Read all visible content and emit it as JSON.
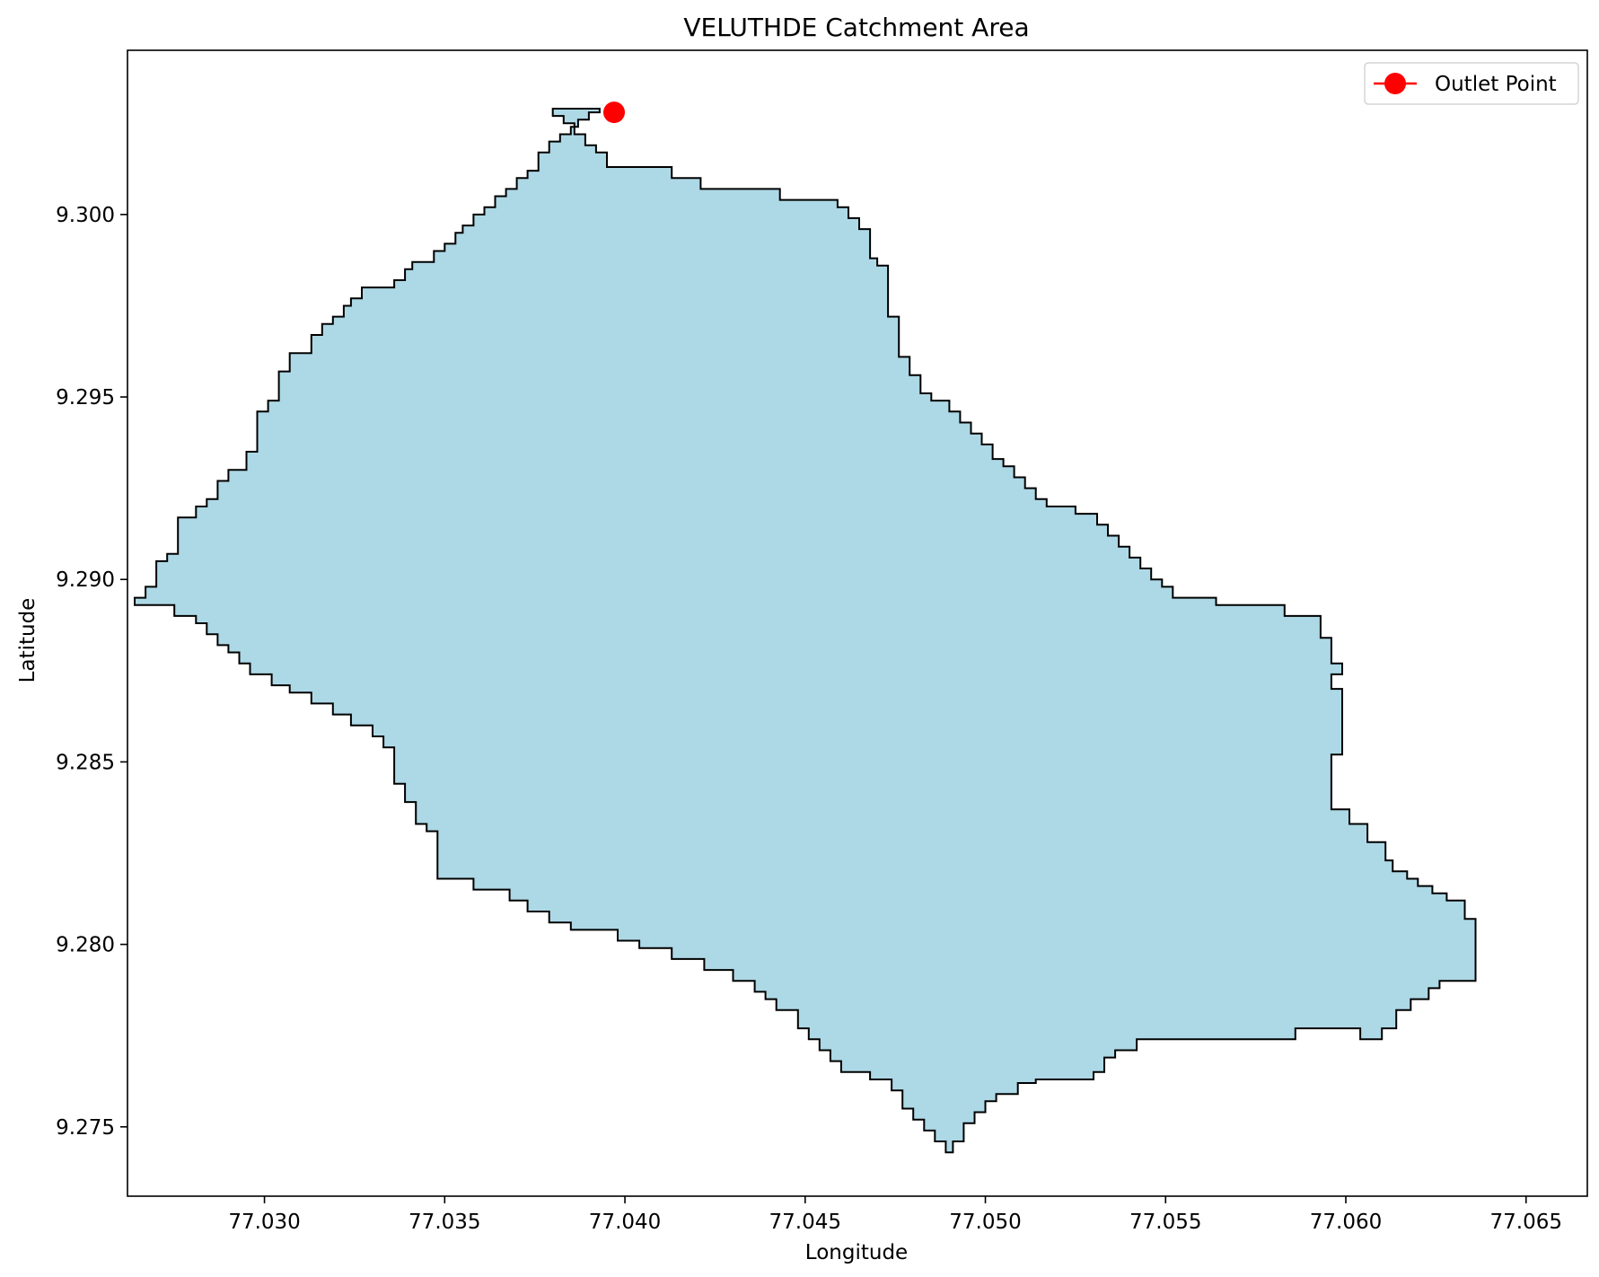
{
  "chart_data": {
    "type": "area",
    "title": "VELUTHDE Catchment Area",
    "xlabel": "Longitude",
    "ylabel": "Latitude",
    "xlim": [
      77.0262,
      77.0667
    ],
    "ylim": [
      9.2731,
      9.3045
    ],
    "xticks": [
      77.03,
      77.035,
      77.04,
      77.045,
      77.05,
      77.055,
      77.06,
      77.065
    ],
    "xtick_labels": [
      "77.030",
      "77.035",
      "77.040",
      "77.045",
      "77.050",
      "77.055",
      "77.060",
      "77.065"
    ],
    "yticks": [
      9.275,
      9.28,
      9.285,
      9.29,
      9.295,
      9.3
    ],
    "ytick_labels": [
      "9.275",
      "9.280",
      "9.285",
      "9.290",
      "9.295",
      "9.300"
    ],
    "grid": false,
    "legend": {
      "position": "top-right",
      "entries": [
        {
          "label": "Outlet Point",
          "color": "#ff0000",
          "marker": "circle"
        }
      ]
    },
    "catchment_fill": "#add8e6",
    "catchment_edge": "#000000",
    "outlet_point": {
      "name": "Outlet Point",
      "x": 77.0397,
      "y": 9.3028,
      "color": "#ff0000"
    },
    "boundary": [
      [
        77.0393,
        9.3029
      ],
      [
        77.0393,
        9.3028
      ],
      [
        77.039,
        9.3028
      ],
      [
        77.039,
        9.3026
      ],
      [
        77.0387,
        9.3026
      ],
      [
        77.0387,
        9.3024
      ],
      [
        77.0385,
        9.3024
      ],
      [
        77.0385,
        9.3022
      ],
      [
        77.0382,
        9.3022
      ],
      [
        77.0382,
        9.302
      ],
      [
        77.0379,
        9.302
      ],
      [
        77.0379,
        9.3017
      ],
      [
        77.0376,
        9.3017
      ],
      [
        77.0376,
        9.3012
      ],
      [
        77.0373,
        9.3012
      ],
      [
        77.0373,
        9.301
      ],
      [
        77.037,
        9.301
      ],
      [
        77.037,
        9.3007
      ],
      [
        77.0367,
        9.3007
      ],
      [
        77.0367,
        9.3005
      ],
      [
        77.0364,
        9.3005
      ],
      [
        77.0364,
        9.3002
      ],
      [
        77.0361,
        9.3002
      ],
      [
        77.0361,
        9.3
      ],
      [
        77.0358,
        9.3
      ],
      [
        77.0358,
        9.2997
      ],
      [
        77.0355,
        9.2997
      ],
      [
        77.0355,
        9.2995
      ],
      [
        77.0353,
        9.2995
      ],
      [
        77.0353,
        9.2992
      ],
      [
        77.035,
        9.2992
      ],
      [
        77.035,
        9.299
      ],
      [
        77.0347,
        9.299
      ],
      [
        77.0347,
        9.2987
      ],
      [
        77.0341,
        9.2987
      ],
      [
        77.0341,
        9.2985
      ],
      [
        77.0339,
        9.2985
      ],
      [
        77.0339,
        9.2982
      ],
      [
        77.0336,
        9.2982
      ],
      [
        77.0336,
        9.298
      ],
      [
        77.0327,
        9.298
      ],
      [
        77.0327,
        9.2977
      ],
      [
        77.0324,
        9.2977
      ],
      [
        77.0324,
        9.2975
      ],
      [
        77.0322,
        9.2975
      ],
      [
        77.0322,
        9.2972
      ],
      [
        77.0319,
        9.2972
      ],
      [
        77.0319,
        9.297
      ],
      [
        77.0316,
        9.297
      ],
      [
        77.0316,
        9.2967
      ],
      [
        77.0313,
        9.2967
      ],
      [
        77.0313,
        9.2962
      ],
      [
        77.0307,
        9.2962
      ],
      [
        77.0307,
        9.2957
      ],
      [
        77.0304,
        9.2957
      ],
      [
        77.0304,
        9.2949
      ],
      [
        77.0301,
        9.2949
      ],
      [
        77.0301,
        9.2946
      ],
      [
        77.0298,
        9.2946
      ],
      [
        77.0298,
        9.2935
      ],
      [
        77.0295,
        9.2935
      ],
      [
        77.0295,
        9.293
      ],
      [
        77.029,
        9.293
      ],
      [
        77.029,
        9.2927
      ],
      [
        77.0287,
        9.2927
      ],
      [
        77.0287,
        9.2922
      ],
      [
        77.0284,
        9.2922
      ],
      [
        77.0284,
        9.292
      ],
      [
        77.0281,
        9.292
      ],
      [
        77.0281,
        9.2917
      ],
      [
        77.0276,
        9.2917
      ],
      [
        77.0276,
        9.2907
      ],
      [
        77.0273,
        9.2907
      ],
      [
        77.0273,
        9.2905
      ],
      [
        77.027,
        9.2905
      ],
      [
        77.027,
        9.2898
      ],
      [
        77.0267,
        9.2898
      ],
      [
        77.0267,
        9.2895
      ],
      [
        77.0264,
        9.2895
      ],
      [
        77.0264,
        9.2893
      ],
      [
        77.0275,
        9.2893
      ],
      [
        77.0275,
        9.289
      ],
      [
        77.0281,
        9.289
      ],
      [
        77.0281,
        9.2888
      ],
      [
        77.0284,
        9.2888
      ],
      [
        77.0284,
        9.2885
      ],
      [
        77.0287,
        9.2885
      ],
      [
        77.0287,
        9.2882
      ],
      [
        77.029,
        9.2882
      ],
      [
        77.029,
        9.288
      ],
      [
        77.0293,
        9.288
      ],
      [
        77.0293,
        9.2877
      ],
      [
        77.0296,
        9.2877
      ],
      [
        77.0296,
        9.2874
      ],
      [
        77.0302,
        9.2874
      ],
      [
        77.0302,
        9.2871
      ],
      [
        77.0307,
        9.2871
      ],
      [
        77.0307,
        9.2869
      ],
      [
        77.0313,
        9.2869
      ],
      [
        77.0313,
        9.2866
      ],
      [
        77.0319,
        9.2866
      ],
      [
        77.0319,
        9.2863
      ],
      [
        77.0324,
        9.2863
      ],
      [
        77.0324,
        9.286
      ],
      [
        77.033,
        9.286
      ],
      [
        77.033,
        9.2857
      ],
      [
        77.0333,
        9.2857
      ],
      [
        77.0333,
        9.2854
      ],
      [
        77.0336,
        9.2854
      ],
      [
        77.0336,
        9.2844
      ],
      [
        77.0339,
        9.2844
      ],
      [
        77.0339,
        9.2839
      ],
      [
        77.0342,
        9.2839
      ],
      [
        77.0342,
        9.2833
      ],
      [
        77.0345,
        9.2833
      ],
      [
        77.0345,
        9.2831
      ],
      [
        77.0348,
        9.2831
      ],
      [
        77.0348,
        9.2818
      ],
      [
        77.0358,
        9.2818
      ],
      [
        77.0358,
        9.2815
      ],
      [
        77.0368,
        9.2815
      ],
      [
        77.0368,
        9.2812
      ],
      [
        77.0373,
        9.2812
      ],
      [
        77.0373,
        9.2809
      ],
      [
        77.0379,
        9.2809
      ],
      [
        77.0379,
        9.2806
      ],
      [
        77.0385,
        9.2806
      ],
      [
        77.0385,
        9.2804
      ],
      [
        77.0398,
        9.2804
      ],
      [
        77.0398,
        9.2801
      ],
      [
        77.0404,
        9.2801
      ],
      [
        77.0404,
        9.2799
      ],
      [
        77.0413,
        9.2799
      ],
      [
        77.0413,
        9.2796
      ],
      [
        77.0422,
        9.2796
      ],
      [
        77.0422,
        9.2793
      ],
      [
        77.043,
        9.2793
      ],
      [
        77.043,
        9.279
      ],
      [
        77.0436,
        9.279
      ],
      [
        77.0436,
        9.2787
      ],
      [
        77.0439,
        9.2787
      ],
      [
        77.0439,
        9.2785
      ],
      [
        77.0442,
        9.2785
      ],
      [
        77.0442,
        9.2782
      ],
      [
        77.0448,
        9.2782
      ],
      [
        77.0448,
        9.2777
      ],
      [
        77.0451,
        9.2777
      ],
      [
        77.0451,
        9.2774
      ],
      [
        77.0454,
        9.2774
      ],
      [
        77.0454,
        9.2771
      ],
      [
        77.0457,
        9.2771
      ],
      [
        77.0457,
        9.2768
      ],
      [
        77.046,
        9.2768
      ],
      [
        77.046,
        9.2765
      ],
      [
        77.0468,
        9.2765
      ],
      [
        77.0468,
        9.2763
      ],
      [
        77.0474,
        9.2763
      ],
      [
        77.0474,
        9.276
      ],
      [
        77.0477,
        9.276
      ],
      [
        77.0477,
        9.2755
      ],
      [
        77.048,
        9.2755
      ],
      [
        77.048,
        9.2752
      ],
      [
        77.0483,
        9.2752
      ],
      [
        77.0483,
        9.2749
      ],
      [
        77.0486,
        9.2749
      ],
      [
        77.0486,
        9.2746
      ],
      [
        77.0489,
        9.2746
      ],
      [
        77.0489,
        9.2743
      ],
      [
        77.0491,
        9.2743
      ],
      [
        77.0491,
        9.2746
      ],
      [
        77.0494,
        9.2746
      ],
      [
        77.0494,
        9.2751
      ],
      [
        77.0497,
        9.2751
      ],
      [
        77.0497,
        9.2754
      ],
      [
        77.05,
        9.2754
      ],
      [
        77.05,
        9.2757
      ],
      [
        77.0503,
        9.2757
      ],
      [
        77.0503,
        9.2759
      ],
      [
        77.0509,
        9.2759
      ],
      [
        77.0509,
        9.2762
      ],
      [
        77.0514,
        9.2762
      ],
      [
        77.0514,
        9.2763
      ],
      [
        77.053,
        9.2763
      ],
      [
        77.053,
        9.2765
      ],
      [
        77.0533,
        9.2765
      ],
      [
        77.0533,
        9.2769
      ],
      [
        77.0536,
        9.2769
      ],
      [
        77.0536,
        9.2771
      ],
      [
        77.0542,
        9.2771
      ],
      [
        77.0542,
        9.2774
      ],
      [
        77.0586,
        9.2774
      ],
      [
        77.0586,
        9.2777
      ],
      [
        77.0604,
        9.2777
      ],
      [
        77.0604,
        9.2774
      ],
      [
        77.061,
        9.2774
      ],
      [
        77.061,
        9.2777
      ],
      [
        77.0614,
        9.2777
      ],
      [
        77.0614,
        9.2782
      ],
      [
        77.0618,
        9.2782
      ],
      [
        77.0618,
        9.2785
      ],
      [
        77.0623,
        9.2785
      ],
      [
        77.0623,
        9.2788
      ],
      [
        77.0626,
        9.2788
      ],
      [
        77.0626,
        9.279
      ],
      [
        77.0636,
        9.279
      ],
      [
        77.0636,
        9.2807
      ],
      [
        77.0633,
        9.2807
      ],
      [
        77.0633,
        9.2812
      ],
      [
        77.0628,
        9.2812
      ],
      [
        77.0628,
        9.2814
      ],
      [
        77.0624,
        9.2814
      ],
      [
        77.0624,
        9.2816
      ],
      [
        77.062,
        9.2816
      ],
      [
        77.062,
        9.2818
      ],
      [
        77.0617,
        9.2818
      ],
      [
        77.0617,
        9.282
      ],
      [
        77.0613,
        9.282
      ],
      [
        77.0613,
        9.2823
      ],
      [
        77.0611,
        9.2823
      ],
      [
        77.0611,
        9.2828
      ],
      [
        77.0606,
        9.2828
      ],
      [
        77.0606,
        9.2833
      ],
      [
        77.0601,
        9.2833
      ],
      [
        77.0601,
        9.2837
      ],
      [
        77.0596,
        9.2837
      ],
      [
        77.0596,
        9.2852
      ],
      [
        77.0599,
        9.2852
      ],
      [
        77.0599,
        9.287
      ],
      [
        77.0596,
        9.287
      ],
      [
        77.0596,
        9.2874
      ],
      [
        77.0599,
        9.2874
      ],
      [
        77.0599,
        9.2877
      ],
      [
        77.0596,
        9.2877
      ],
      [
        77.0596,
        9.2884
      ],
      [
        77.0593,
        9.2884
      ],
      [
        77.0593,
        9.289
      ],
      [
        77.0583,
        9.289
      ],
      [
        77.0583,
        9.2893
      ],
      [
        77.0564,
        9.2893
      ],
      [
        77.0564,
        9.2895
      ],
      [
        77.0552,
        9.2895
      ],
      [
        77.0552,
        9.2898
      ],
      [
        77.0549,
        9.2898
      ],
      [
        77.0549,
        9.29
      ],
      [
        77.0546,
        9.29
      ],
      [
        77.0546,
        9.2903
      ],
      [
        77.0543,
        9.2903
      ],
      [
        77.0543,
        9.2906
      ],
      [
        77.054,
        9.2906
      ],
      [
        77.054,
        9.2909
      ],
      [
        77.0537,
        9.2909
      ],
      [
        77.0537,
        9.2912
      ],
      [
        77.0534,
        9.2912
      ],
      [
        77.0534,
        9.2915
      ],
      [
        77.0531,
        9.2915
      ],
      [
        77.0531,
        9.2918
      ],
      [
        77.0525,
        9.2918
      ],
      [
        77.0525,
        9.292
      ],
      [
        77.0517,
        9.292
      ],
      [
        77.0517,
        9.2922
      ],
      [
        77.0514,
        9.2922
      ],
      [
        77.0514,
        9.2925
      ],
      [
        77.0511,
        9.2925
      ],
      [
        77.0511,
        9.2928
      ],
      [
        77.0508,
        9.2928
      ],
      [
        77.0508,
        9.2931
      ],
      [
        77.0505,
        9.2931
      ],
      [
        77.0505,
        9.2933
      ],
      [
        77.0502,
        9.2933
      ],
      [
        77.0502,
        9.2937
      ],
      [
        77.0499,
        9.2937
      ],
      [
        77.0499,
        9.294
      ],
      [
        77.0496,
        9.294
      ],
      [
        77.0496,
        9.2943
      ],
      [
        77.0493,
        9.2943
      ],
      [
        77.0493,
        9.2946
      ],
      [
        77.049,
        9.2946
      ],
      [
        77.049,
        9.2949
      ],
      [
        77.0485,
        9.2949
      ],
      [
        77.0485,
        9.2951
      ],
      [
        77.0482,
        9.2951
      ],
      [
        77.0482,
        9.2956
      ],
      [
        77.0479,
        9.2956
      ],
      [
        77.0479,
        9.2961
      ],
      [
        77.0476,
        9.2961
      ],
      [
        77.0476,
        9.2972
      ],
      [
        77.0473,
        9.2972
      ],
      [
        77.0473,
        9.2986
      ],
      [
        77.047,
        9.2986
      ],
      [
        77.047,
        9.2988
      ],
      [
        77.0468,
        9.2988
      ],
      [
        77.0468,
        9.2996
      ],
      [
        77.0465,
        9.2996
      ],
      [
        77.0465,
        9.2999
      ],
      [
        77.0462,
        9.2999
      ],
      [
        77.0462,
        9.3002
      ],
      [
        77.0459,
        9.3002
      ],
      [
        77.0459,
        9.3004
      ],
      [
        77.0443,
        9.3004
      ],
      [
        77.0443,
        9.3007
      ],
      [
        77.0421,
        9.3007
      ],
      [
        77.0421,
        9.301
      ],
      [
        77.0413,
        9.301
      ],
      [
        77.0413,
        9.3013
      ],
      [
        77.0395,
        9.3013
      ],
      [
        77.0395,
        9.3017
      ],
      [
        77.0392,
        9.3017
      ],
      [
        77.0392,
        9.3019
      ],
      [
        77.0389,
        9.3019
      ],
      [
        77.0389,
        9.3022
      ],
      [
        77.0386,
        9.3022
      ],
      [
        77.0386,
        9.3025
      ],
      [
        77.0383,
        9.3025
      ],
      [
        77.0383,
        9.3027
      ],
      [
        77.038,
        9.3027
      ],
      [
        77.038,
        9.3029
      ]
    ]
  }
}
